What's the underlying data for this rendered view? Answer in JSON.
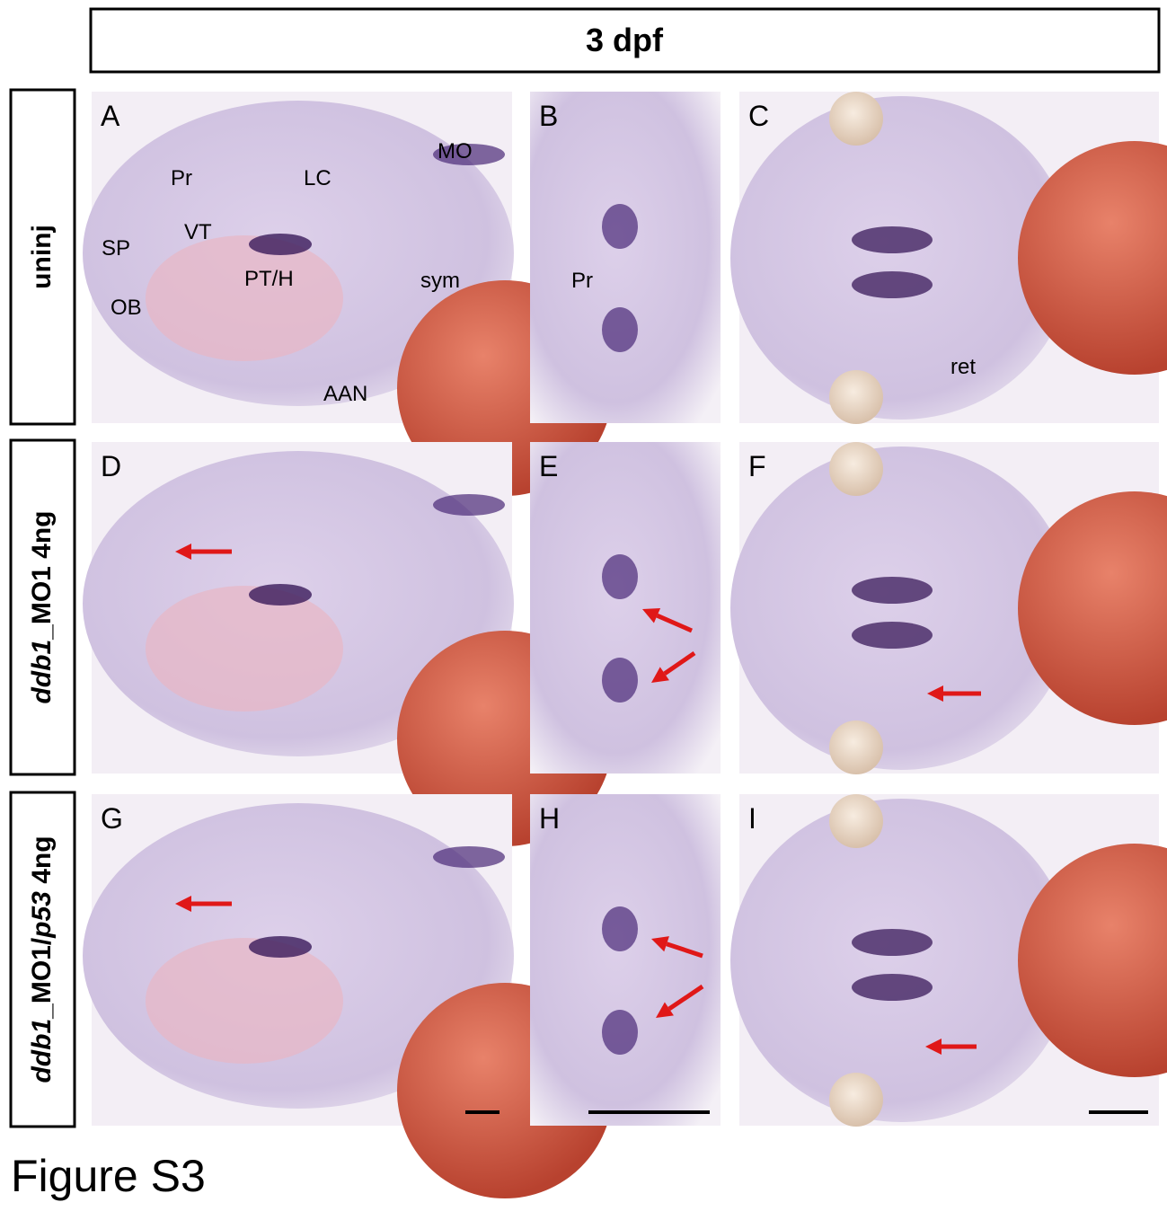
{
  "header": {
    "title": "3 dpf"
  },
  "rows": [
    {
      "label": [
        {
          "text": "uninj",
          "italic": false
        }
      ]
    },
    {
      "label": [
        {
          "text": "ddb1",
          "italic": true
        },
        {
          "text": "_MO1 4ng",
          "italic": false
        }
      ]
    },
    {
      "label": [
        {
          "text": "ddb1",
          "italic": true
        },
        {
          "text": "_MO1/",
          "italic": false
        },
        {
          "text": "p53",
          "italic": true
        },
        {
          "text": " 4ng",
          "italic": false
        }
      ]
    }
  ],
  "panels": [
    {
      "letter": "A",
      "annotations": [
        "Pr",
        "VT",
        "LC",
        "MO",
        "SP",
        "OB",
        "PT/H",
        "sym",
        "AAN"
      ]
    },
    {
      "letter": "B",
      "annotations": [
        "Pr"
      ]
    },
    {
      "letter": "C",
      "annotations": [
        "ret"
      ]
    },
    {
      "letter": "D",
      "annotations": []
    },
    {
      "letter": "E",
      "annotations": []
    },
    {
      "letter": "F",
      "annotations": []
    },
    {
      "letter": "G",
      "annotations": []
    },
    {
      "letter": "H",
      "annotations": []
    },
    {
      "letter": "I",
      "annotations": []
    }
  ],
  "footer": {
    "title": "Figure S3"
  }
}
